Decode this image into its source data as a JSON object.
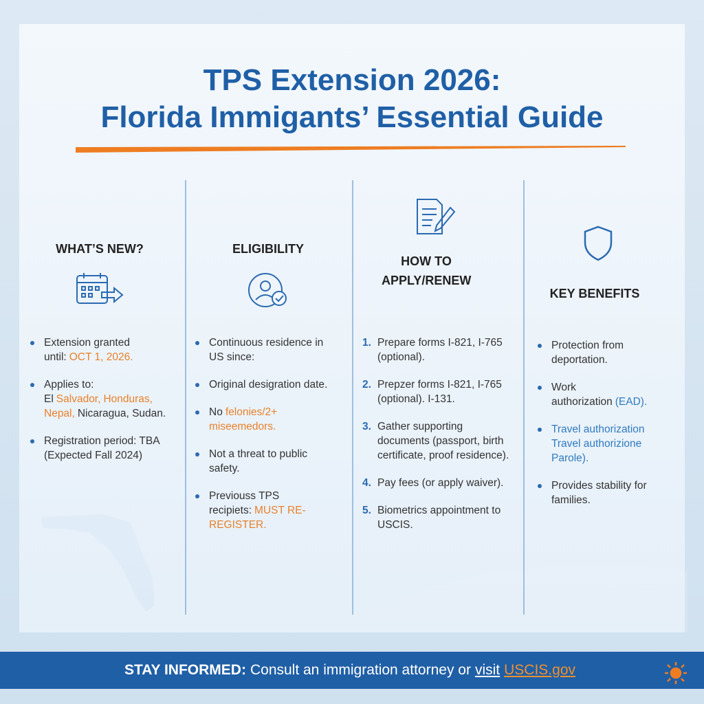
{
  "header": {
    "title_line1": "TPS Extension 2026:",
    "title_line2": "Florida Immigants’ Essential Guide"
  },
  "columns": [
    {
      "heading": "WHAT’S NEW?",
      "items": [
        {
          "segments": [
            {
              "text": "Extension granted until:"
            },
            {
              "text": "OCT 1, 2026.",
              "color": "#e8812a"
            }
          ]
        },
        {
          "segments": [
            {
              "text": "Applies to: El"
            },
            {
              "text": "Salvador,",
              "color": "#e8812a"
            },
            {
              "text": "Honduras, Nepal,",
              "color": "#e8812a"
            },
            {
              "text": "Nicaragua, Sudan."
            }
          ]
        },
        {
          "segments": [
            {
              "text": "Registration period: TBA (Expected Fall 2024)"
            }
          ]
        }
      ]
    },
    {
      "heading": "ELIGIBILITY",
      "items": [
        {
          "segments": [
            {
              "text": "Continuous residence in US since:"
            }
          ]
        },
        {
          "segments": [
            {
              "text": "Original desigration date."
            }
          ]
        },
        {
          "segments": [
            {
              "text": "No"
            },
            {
              "text": "felonies/2+ miseemedors.",
              "color": "#e8812a"
            }
          ]
        },
        {
          "segments": [
            {
              "text": "Not a threat to public safety."
            }
          ]
        },
        {
          "segments": [
            {
              "text": "Previouss TPS recipiets:"
            },
            {
              "text": "MUST RE-REGISTER.",
              "color": "#e8812a"
            }
          ]
        }
      ]
    },
    {
      "heading": "HOW TO APPLY/RENEW",
      "items": [
        {
          "marker": "1.",
          "segments": [
            {
              "text": "Prepare forms I-821, I-765 (optional)."
            }
          ]
        },
        {
          "marker": "2.",
          "segments": [
            {
              "text": "Prepzer forms I-821, I-765 (optional). I-131."
            }
          ]
        },
        {
          "marker": "3.",
          "segments": [
            {
              "text": "Gather supporting documents (passport, birth certificate, proof residence)."
            }
          ]
        },
        {
          "marker": "4.",
          "segments": [
            {
              "text": "Pay fees (or apply waiver)."
            }
          ]
        },
        {
          "marker": "5.",
          "segments": [
            {
              "text": "Biometrics appointment to USCIS."
            }
          ]
        }
      ]
    },
    {
      "heading": "KEY BENEFITS",
      "items": [
        {
          "segments": [
            {
              "text": "Protection from deportation."
            }
          ]
        },
        {
          "segments": [
            {
              "text": "Work authorization"
            },
            {
              "text": "(EAD).",
              "color": "#2f7bbf"
            }
          ]
        },
        {
          "segments": [
            {
              "text": "Travel authorization Travel authorizione Parole).",
              "color": "#2f7bbf"
            }
          ]
        },
        {
          "segments": [
            {
              "text": "Provides stability for families."
            }
          ]
        }
      ]
    }
  ],
  "footer": {
    "segments": [
      {
        "text": "STAY INFORMED:"
      },
      {
        "text": "Consult an immigration attorney or"
      },
      {
        "text": "visit"
      },
      {
        "text": "USCIS.gov",
        "color": "#f0902e"
      }
    ]
  }
}
